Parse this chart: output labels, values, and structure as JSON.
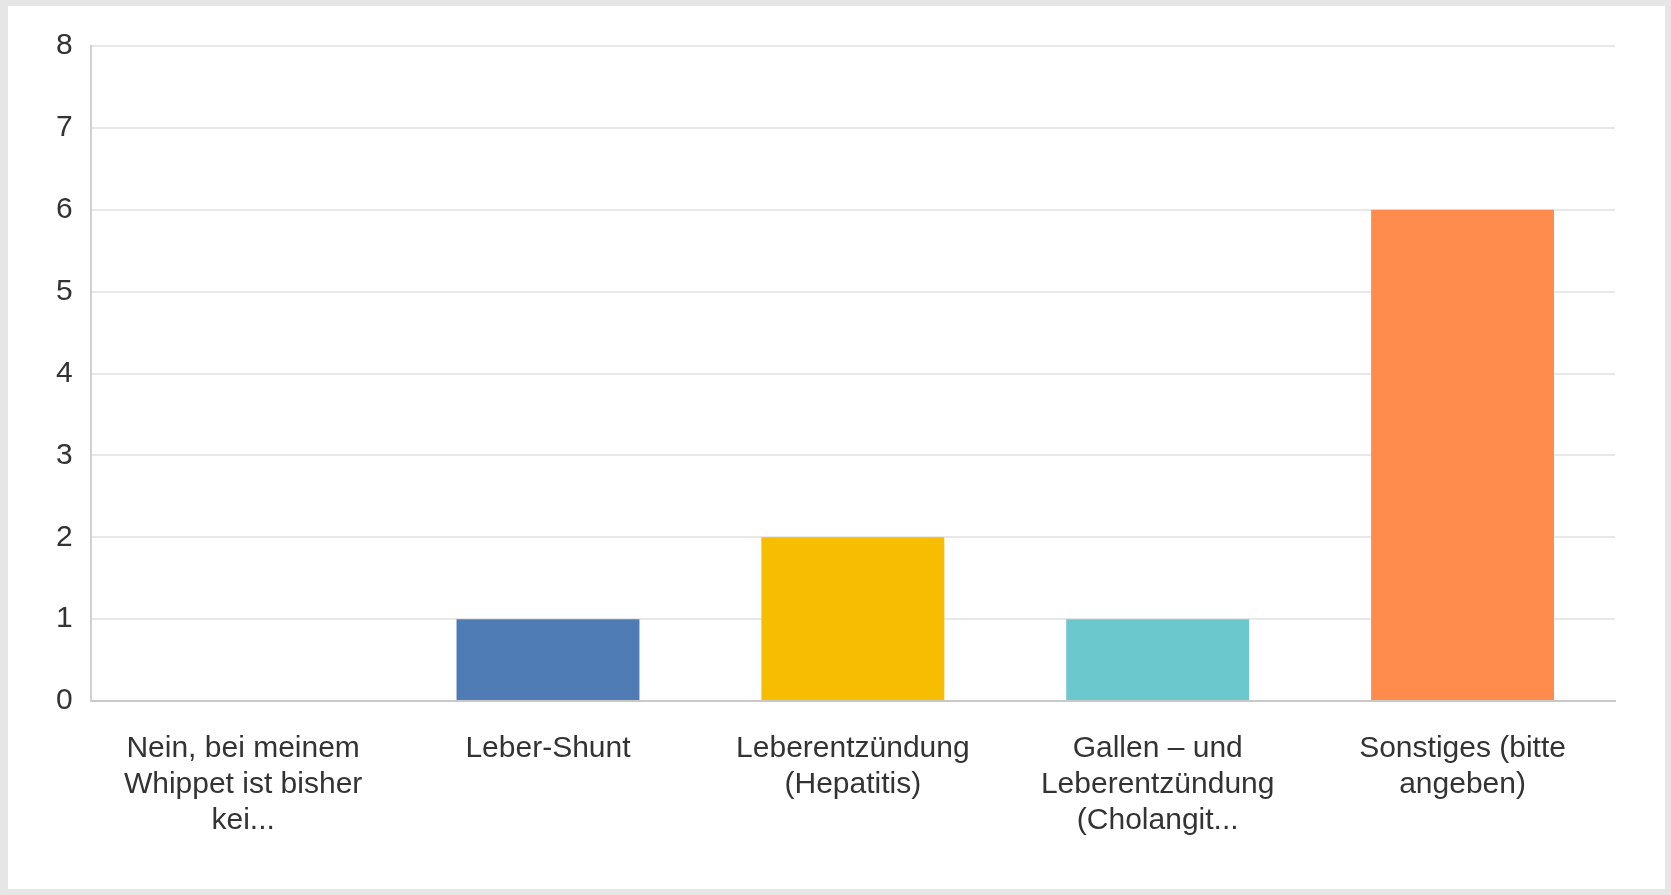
{
  "chart_data": {
    "type": "bar",
    "categories": [
      "Nein, bei meinem Whippet ist bisher kei...",
      "Leber-Shunt",
      "Leberentzündung (Hepatitis)",
      "Gallen – und Leberentzündung (Cholangit...",
      "Sonstiges (bitte angeben)"
    ],
    "values": [
      0,
      1,
      2,
      1,
      6
    ],
    "colors": [
      "#6bc8cd",
      "#507cb6",
      "#f7bd00",
      "#6bc8cd",
      "#ff8b4c"
    ],
    "ylim": [
      0,
      8
    ],
    "yticks": [
      0,
      1,
      2,
      3,
      4,
      5,
      6,
      7,
      8
    ],
    "grid": "y"
  }
}
